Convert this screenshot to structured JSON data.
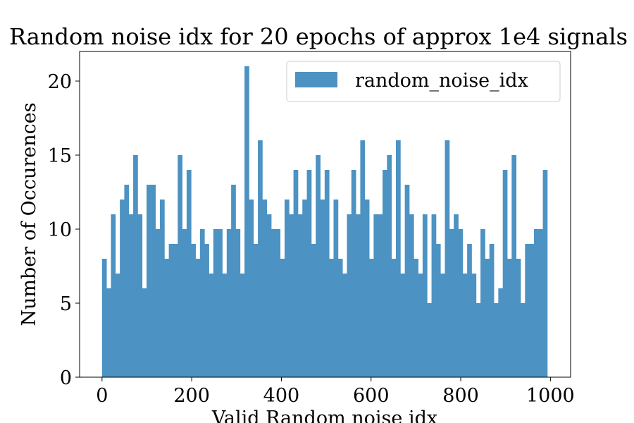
{
  "chart_data": {
    "type": "bar",
    "title": "Random noise idx for 20 epochs of approx 1e4 signals",
    "xlabel": "Valid Random noise idx",
    "ylabel": "Number of Occurences",
    "legend": {
      "label": "random_noise_idx",
      "placement": "top-right"
    },
    "xlim": [
      -50,
      1045
    ],
    "ylim": [
      0,
      22
    ],
    "xticks": [
      0,
      200,
      400,
      600,
      800,
      1000
    ],
    "yticks": [
      0,
      5,
      10,
      15,
      20
    ],
    "grid": false,
    "bar_color": "#4c92c3",
    "bin_start": 0,
    "bin_width": 9.93,
    "values": [
      8,
      6,
      11,
      7,
      12,
      13,
      11,
      15,
      11,
      6,
      13,
      13,
      10,
      12,
      8,
      9,
      9,
      15,
      10,
      14,
      9,
      8,
      10,
      9,
      7,
      10,
      10,
      7,
      10,
      13,
      10,
      7,
      21,
      12,
      9,
      16,
      12,
      11,
      10,
      10,
      8,
      12,
      11,
      14,
      11,
      12,
      14,
      9,
      15,
      12,
      14,
      8,
      12,
      8,
      7,
      11,
      14,
      11,
      16,
      12,
      8,
      11,
      11,
      14,
      15,
      8,
      16,
      7,
      13,
      11,
      8,
      7,
      11,
      5,
      11,
      9,
      7,
      16,
      10,
      11,
      10,
      7,
      9,
      7,
      5,
      10,
      8,
      9,
      5,
      6,
      14,
      8,
      15,
      8,
      5,
      9,
      9,
      10,
      10,
      14
    ]
  }
}
